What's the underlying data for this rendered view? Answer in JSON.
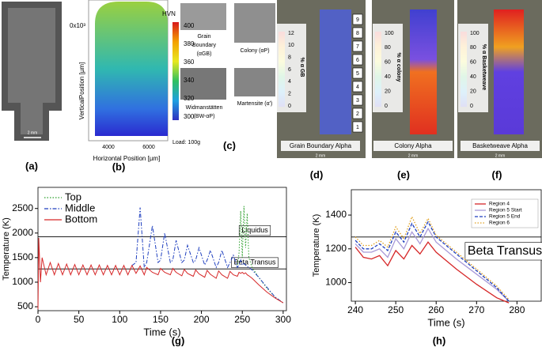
{
  "panels": {
    "labels": [
      "(a)",
      "(b)",
      "(c)",
      "(d)",
      "(e)",
      "(f)",
      "(g)",
      "(h)"
    ],
    "a": {
      "scale": "2 mm"
    },
    "b": {
      "y_exponent": "0x10³",
      "ylabel": "VerticalPosition [µm]",
      "xlabel": "Horizontal Position [µm]",
      "xticks": [
        4000,
        6000
      ],
      "colorbar_title": "HVN",
      "colorbar_ticks": [
        400,
        380,
        360,
        340,
        320,
        300
      ],
      "note": "Load: 100g"
    },
    "c": {
      "micrographs": [
        {
          "lines": [
            "Grain",
            "Boundary",
            "(αGB)"
          ]
        },
        {
          "lines": [
            "Colony (αP)"
          ]
        },
        {
          "lines": [
            "Widmanstätten",
            "(BW-αP)"
          ]
        },
        {
          "lines": [
            "Martensite (α′)"
          ]
        }
      ]
    },
    "d": {
      "colorbar_label": "% α GB",
      "colorbar_ticks": [
        12,
        10,
        8,
        6,
        4,
        2,
        0
      ],
      "layers": [
        9,
        8,
        7,
        6,
        5,
        4,
        3,
        2,
        1
      ],
      "title": "Grain Boundary Alpha",
      "scale": "2 mm"
    },
    "e": {
      "colorbar_label": "% α colony",
      "colorbar_ticks": [
        100,
        80,
        60,
        40,
        20,
        0
      ],
      "title": "Colony Alpha",
      "scale": "2 mm"
    },
    "f": {
      "colorbar_label": "% α Basketweave",
      "colorbar_ticks": [
        100,
        80,
        60,
        40,
        20,
        0
      ],
      "title": "Basketweave Alpha",
      "scale": "2 mm"
    }
  },
  "chart_data": [
    {
      "type": "line",
      "xlabel": "Time (s)",
      "ylabel": "Temperature (K)",
      "x": [
        0,
        1,
        3,
        5,
        10,
        15,
        20,
        25,
        30,
        35,
        40,
        45,
        50,
        55,
        60,
        65,
        70,
        75,
        80,
        85,
        90,
        95,
        100,
        105,
        110,
        115,
        120,
        125,
        130,
        133,
        140,
        147,
        150,
        155,
        162,
        165,
        169,
        176,
        179,
        183,
        190,
        193,
        197,
        204,
        207,
        211,
        218,
        221,
        225,
        232,
        235,
        239,
        244,
        246,
        248,
        250,
        252,
        254,
        256,
        258,
        262,
        270,
        280,
        290,
        300
      ],
      "xlim": [
        0,
        304
      ],
      "xticks": [
        0,
        50,
        100,
        150,
        200,
        250,
        300
      ],
      "ylim": [
        420,
        2930
      ],
      "yticks": [
        500,
        1000,
        1500,
        2000,
        2500
      ],
      "legend": "upper left",
      "series": [
        {
          "name": "Top",
          "color": "#2ca02c",
          "style": "dotted",
          "values": [
            null,
            null,
            null,
            null,
            null,
            null,
            null,
            null,
            null,
            null,
            null,
            null,
            null,
            null,
            null,
            null,
            null,
            null,
            null,
            null,
            null,
            null,
            null,
            null,
            null,
            null,
            null,
            null,
            null,
            null,
            null,
            null,
            null,
            null,
            null,
            null,
            null,
            null,
            null,
            null,
            null,
            null,
            null,
            null,
            null,
            null,
            null,
            null,
            null,
            null,
            null,
            null,
            1300,
            1600,
            2450,
            1500,
            2550,
            1700,
            2400,
            1500,
            1300,
            1100,
            880,
            700,
            580
          ]
        },
        {
          "name": "Middle",
          "color": "#1f3fbf",
          "style": "dashdot",
          "values": [
            null,
            null,
            null,
            null,
            null,
            null,
            null,
            null,
            null,
            null,
            null,
            null,
            null,
            null,
            null,
            null,
            null,
            null,
            null,
            null,
            null,
            null,
            null,
            null,
            null,
            1340,
            1400,
            2520,
            1300,
            1400,
            2150,
            1400,
            1450,
            2000,
            1400,
            1450,
            1850,
            1400,
            1450,
            1750,
            1400,
            1450,
            1700,
            1350,
            1450,
            1650,
            1300,
            1400,
            1650,
            1300,
            1400,
            1550,
            1300,
            1350,
            1450,
            1350,
            1380,
            1350,
            1320,
            1300,
            1250,
            1100,
            900,
            700,
            580
          ]
        },
        {
          "name": "Bottom",
          "color": "#d62728",
          "style": "solid",
          "values": [
            450,
            1900,
            1000,
            1500,
            1150,
            1400,
            1150,
            1380,
            1150,
            1370,
            1150,
            1360,
            1150,
            1350,
            1150,
            1350,
            1150,
            1350,
            1150,
            1340,
            1150,
            1340,
            1150,
            1340,
            1150,
            1340,
            1180,
            1330,
            1150,
            1300,
            1200,
            1150,
            1280,
            1200,
            1150,
            1280,
            1200,
            1130,
            1260,
            1180,
            1120,
            1250,
            1170,
            1100,
            1240,
            1160,
            1080,
            1230,
            1150,
            1080,
            1220,
            1150,
            1120,
            1200,
            1180,
            1200,
            1170,
            1190,
            1150,
            1130,
            1080,
            950,
            800,
            680,
            580
          ]
        }
      ],
      "reference_lines": [
        {
          "label": "Liquidus",
          "value": 1923
        },
        {
          "label": "Beta Transus",
          "value": 1270
        }
      ]
    },
    {
      "type": "line",
      "xlabel": "Time (s)",
      "ylabel": "Temperature (K)",
      "x": [
        240,
        242,
        244,
        246,
        248,
        250,
        252,
        254,
        256,
        258,
        260,
        265,
        270,
        275,
        278
      ],
      "xlim": [
        239,
        286
      ],
      "xticks": [
        240,
        250,
        260,
        270,
        280
      ],
      "ylim": [
        890,
        1550
      ],
      "yticks": [
        1000,
        1200,
        1400
      ],
      "legend": "upper right",
      "series": [
        {
          "name": "Region 4",
          "color": "#d62728",
          "style": "solid",
          "values": [
            1210,
            1150,
            1140,
            1160,
            1100,
            1190,
            1140,
            1220,
            1170,
            1240,
            1180,
            1080,
            990,
            910,
            880
          ]
        },
        {
          "name": "Region 5 Start",
          "color": "#a89ad8",
          "style": "solid",
          "values": [
            1230,
            1180,
            1180,
            1200,
            1150,
            1260,
            1200,
            1300,
            1230,
            1320,
            1240,
            1140,
            1050,
            960,
            890
          ]
        },
        {
          "name": "Region 5 End",
          "color": "#1f3fbf",
          "style": "dashed",
          "values": [
            1250,
            1200,
            1200,
            1230,
            1190,
            1300,
            1240,
            1350,
            1270,
            1360,
            1270,
            1170,
            1070,
            970,
            890
          ]
        },
        {
          "name": "Region 6",
          "color": "#e0a020",
          "style": "dotted",
          "values": [
            1270,
            1220,
            1220,
            1250,
            1210,
            1330,
            1260,
            1390,
            1290,
            1380,
            1280,
            1180,
            1080,
            980,
            900
          ]
        }
      ],
      "reference_lines": [
        {
          "label": "Beta Transus",
          "value": 1270
        }
      ]
    }
  ]
}
